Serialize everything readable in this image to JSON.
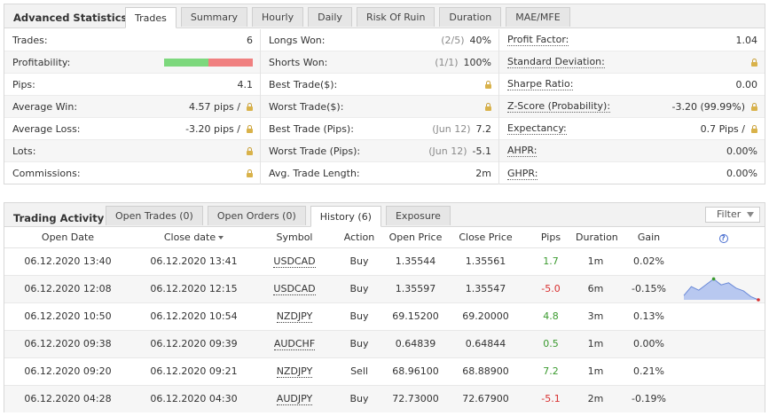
{
  "stats_panel": {
    "title": "Advanced Statistics",
    "tabs": [
      "Trades",
      "Summary",
      "Hourly",
      "Daily",
      "Risk Of Ruin",
      "Duration",
      "MAE/MFE"
    ],
    "active_tab": "Trades",
    "col_a": [
      {
        "label": "Trades:",
        "value": "6"
      },
      {
        "label": "Profitability:",
        "win_fraction": 0.5
      },
      {
        "label": "Pips:",
        "value": "4.1"
      },
      {
        "label": "Average Win:",
        "value": "4.57 pips /",
        "locked": true
      },
      {
        "label": "Average Loss:",
        "value": "-3.20 pips /",
        "locked": true
      },
      {
        "label": "Lots:",
        "value": "",
        "locked": true
      },
      {
        "label": "Commissions:",
        "value": "",
        "locked": true
      }
    ],
    "col_b": [
      {
        "label": "Longs Won:",
        "detail": "(2/5)",
        "value": "40%"
      },
      {
        "label": "Shorts Won:",
        "detail": "(1/1)",
        "value": "100%"
      },
      {
        "label": "Best Trade($):",
        "value": "",
        "locked": true
      },
      {
        "label": "Worst Trade($):",
        "value": "",
        "locked": true
      },
      {
        "label": "Best Trade (Pips):",
        "detail": "(Jun 12)",
        "value": "7.2"
      },
      {
        "label": "Worst Trade (Pips):",
        "detail": "(Jun 12)",
        "value": "-5.1"
      },
      {
        "label": "Avg. Trade Length:",
        "value": "2m"
      }
    ],
    "col_c": [
      {
        "label": "Profit Factor:",
        "value": "1.04"
      },
      {
        "label": "Standard Deviation:",
        "value": "",
        "locked": true
      },
      {
        "label": "Sharpe Ratio:",
        "value": "0.00"
      },
      {
        "label": "Z-Score (Probability):",
        "value": "-3.20 (99.99%)",
        "locked": true
      },
      {
        "label": "Expectancy:",
        "value": "0.7 Pips /",
        "locked": true
      },
      {
        "label": "AHPR:",
        "value": "0.00%"
      },
      {
        "label": "GHPR:",
        "value": "0.00%"
      }
    ]
  },
  "activity_panel": {
    "title": "Trading Activity",
    "tabs": [
      "Open Trades (0)",
      "Open Orders (0)",
      "History (6)",
      "Exposure"
    ],
    "active_tab": "History (6)",
    "filter_label": "Filter",
    "columns": [
      "Open Date",
      "Close date",
      "Symbol",
      "Action",
      "Open Price",
      "Close Price",
      "Pips",
      "Duration",
      "Gain"
    ],
    "help_glyph": "?",
    "rows": [
      {
        "open": "06.12.2020 13:40",
        "close": "06.12.2020 13:41",
        "symbol": "USDCAD",
        "action": "Buy",
        "open_price": "1.35544",
        "close_price": "1.35561",
        "pips": "1.7",
        "duration": "1m",
        "gain": "0.02%"
      },
      {
        "open": "06.12.2020 12:08",
        "close": "06.12.2020 12:15",
        "symbol": "USDCAD",
        "action": "Buy",
        "open_price": "1.35597",
        "close_price": "1.35547",
        "pips": "-5.0",
        "duration": "6m",
        "gain": "-0.15%"
      },
      {
        "open": "06.12.2020 10:50",
        "close": "06.12.2020 10:54",
        "symbol": "NZDJPY",
        "action": "Buy",
        "open_price": "69.15200",
        "close_price": "69.20000",
        "pips": "4.8",
        "duration": "3m",
        "gain": "0.13%"
      },
      {
        "open": "06.12.2020 09:38",
        "close": "06.12.2020 09:39",
        "symbol": "AUDCHF",
        "action": "Buy",
        "open_price": "0.64839",
        "close_price": "0.64844",
        "pips": "0.5",
        "duration": "1m",
        "gain": "0.00%"
      },
      {
        "open": "06.12.2020 09:20",
        "close": "06.12.2020 09:21",
        "symbol": "NZDJPY",
        "action": "Sell",
        "open_price": "68.96100",
        "close_price": "68.88900",
        "pips": "7.2",
        "duration": "1m",
        "gain": "0.21%"
      },
      {
        "open": "06.12.2020 04:28",
        "close": "06.12.2020 04:30",
        "symbol": "AUDJPY",
        "action": "Buy",
        "open_price": "72.73000",
        "close_price": "72.67900",
        "pips": "-5.1",
        "duration": "2m",
        "gain": "-0.19%"
      }
    ],
    "sparkline": {
      "row_index": 1,
      "values": [
        0.2,
        0.62,
        0.45,
        0.72,
        0.98,
        0.7,
        0.8,
        0.55,
        0.42,
        0.15,
        0.0
      ],
      "fill_color": "#b8c8f0",
      "line_color": "#6b8ad8",
      "max_dot_color": "#3a9a2e",
      "min_dot_color": "#d83030"
    }
  },
  "colors": {
    "profit_green": "#3a9a2e",
    "loss_red": "#d83030",
    "bar_win": "#7dd87d",
    "bar_loss": "#f08080"
  }
}
